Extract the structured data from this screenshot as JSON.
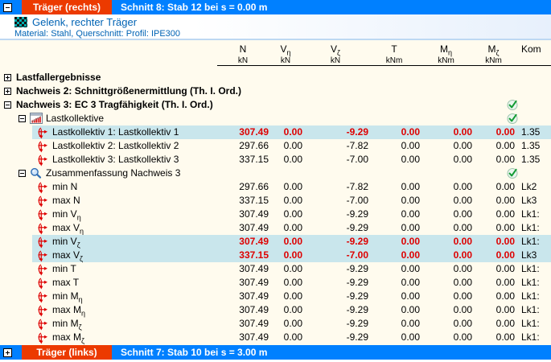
{
  "top_bar": {
    "toggle": "-",
    "title": "Träger (rechts)",
    "subtitle": "Schnitt 8: Stab 12 bei s = 0.00 m"
  },
  "bottom_bar": {
    "toggle": "+",
    "title": "Träger (links)",
    "subtitle": "Schnitt 7: Stab 10 bei s = 3.00 m"
  },
  "info": {
    "title": "Gelenk, rechter Träger",
    "material_line": "Material: Stahl,  Querschnitt: Profil:  IPE300"
  },
  "colors": {
    "bar_blue": "#0080FF",
    "bar_red": "#EC3A00",
    "table_bg": "#FFFBEE",
    "row_highlight": "#C9E6EC",
    "value_red": "#DE0000",
    "info_text_blue": "#0063B4"
  },
  "columns": [
    {
      "sym": "N",
      "unit": "kN"
    },
    {
      "sym": "Vη",
      "unit": "kN"
    },
    {
      "sym": "Vζ",
      "unit": "kN"
    },
    {
      "sym": "T",
      "unit": "kNm"
    },
    {
      "sym": "Mη",
      "unit": "kNm"
    },
    {
      "sym": "Mζ",
      "unit": "kNm"
    },
    {
      "sym": "Kom",
      "unit": ""
    }
  ],
  "rows": [
    {
      "kind": "group",
      "level": 0,
      "expander": "+",
      "label": "Lastfallergebnisse",
      "bold": true
    },
    {
      "kind": "group",
      "level": 0,
      "expander": "+",
      "label": "Nachweis 2: Schnittgrößenermittlung (Th. I. Ord.)",
      "bold": true
    },
    {
      "kind": "group",
      "level": 0,
      "expander": "-",
      "label": "Nachweis 3: EC 3 Tragfähigkeit (Th. I. Ord.)",
      "bold": true,
      "check": true
    },
    {
      "kind": "group",
      "level": 1,
      "expander": "-",
      "icon": "bar-chart-icon",
      "label": "Lastkollektive",
      "check": true
    },
    {
      "kind": "data",
      "level": 2,
      "icon": "forces-icon",
      "label": "Lastkollektiv 1: Lastkollektiv 1",
      "values": [
        "307.49",
        "0.00",
        "-9.29",
        "0.00",
        "0.00",
        "0.00"
      ],
      "kom": "1.35",
      "highlight": true
    },
    {
      "kind": "data",
      "level": 2,
      "icon": "forces-icon",
      "label": "Lastkollektiv 2: Lastkollektiv 2",
      "values": [
        "297.66",
        "0.00",
        "-7.82",
        "0.00",
        "0.00",
        "0.00"
      ],
      "kom": "1.35"
    },
    {
      "kind": "data",
      "level": 2,
      "icon": "forces-icon",
      "label": "Lastkollektiv 3: Lastkollektiv 3",
      "values": [
        "337.15",
        "0.00",
        "-7.00",
        "0.00",
        "0.00",
        "0.00"
      ],
      "kom": "1.35"
    },
    {
      "kind": "group",
      "level": 1,
      "expander": "-",
      "icon": "magnifier-icon",
      "label": "Zusammenfassung Nachweis 3",
      "check": true
    },
    {
      "kind": "data",
      "level": 2,
      "icon": "forces-icon",
      "label": "min N",
      "values": [
        "297.66",
        "0.00",
        "-7.82",
        "0.00",
        "0.00",
        "0.00"
      ],
      "kom": "Lk2"
    },
    {
      "kind": "data",
      "level": 2,
      "icon": "forces-icon",
      "label": "max N",
      "values": [
        "337.15",
        "0.00",
        "-7.00",
        "0.00",
        "0.00",
        "0.00"
      ],
      "kom": "Lk3"
    },
    {
      "kind": "data",
      "level": 2,
      "icon": "forces-icon",
      "label": "min Vη",
      "values": [
        "307.49",
        "0.00",
        "-9.29",
        "0.00",
        "0.00",
        "0.00"
      ],
      "kom": "Lk1:"
    },
    {
      "kind": "data",
      "level": 2,
      "icon": "forces-icon",
      "label": "max Vη",
      "values": [
        "307.49",
        "0.00",
        "-9.29",
        "0.00",
        "0.00",
        "0.00"
      ],
      "kom": "Lk1:"
    },
    {
      "kind": "data",
      "level": 2,
      "icon": "forces-icon",
      "label": "min Vζ",
      "values": [
        "307.49",
        "0.00",
        "-9.29",
        "0.00",
        "0.00",
        "0.00"
      ],
      "kom": "Lk1:",
      "highlight": true
    },
    {
      "kind": "data",
      "level": 2,
      "icon": "forces-icon",
      "label": "max Vζ",
      "values": [
        "337.15",
        "0.00",
        "-7.00",
        "0.00",
        "0.00",
        "0.00"
      ],
      "kom": "Lk3",
      "highlight": true
    },
    {
      "kind": "data",
      "level": 2,
      "icon": "forces-icon",
      "label": "min T",
      "values": [
        "307.49",
        "0.00",
        "-9.29",
        "0.00",
        "0.00",
        "0.00"
      ],
      "kom": "Lk1:"
    },
    {
      "kind": "data",
      "level": 2,
      "icon": "forces-icon",
      "label": "max T",
      "values": [
        "307.49",
        "0.00",
        "-9.29",
        "0.00",
        "0.00",
        "0.00"
      ],
      "kom": "Lk1:"
    },
    {
      "kind": "data",
      "level": 2,
      "icon": "forces-icon",
      "label": "min Mη",
      "values": [
        "307.49",
        "0.00",
        "-9.29",
        "0.00",
        "0.00",
        "0.00"
      ],
      "kom": "Lk1:"
    },
    {
      "kind": "data",
      "level": 2,
      "icon": "forces-icon",
      "label": "max Mη",
      "values": [
        "307.49",
        "0.00",
        "-9.29",
        "0.00",
        "0.00",
        "0.00"
      ],
      "kom": "Lk1:"
    },
    {
      "kind": "data",
      "level": 2,
      "icon": "forces-icon",
      "label": "min Mζ",
      "values": [
        "307.49",
        "0.00",
        "-9.29",
        "0.00",
        "0.00",
        "0.00"
      ],
      "kom": "Lk1:"
    },
    {
      "kind": "data",
      "level": 2,
      "icon": "forces-icon",
      "label": "max Mζ",
      "values": [
        "307.49",
        "0.00",
        "-9.29",
        "0.00",
        "0.00",
        "0.00"
      ],
      "kom": "Lk1:"
    }
  ]
}
